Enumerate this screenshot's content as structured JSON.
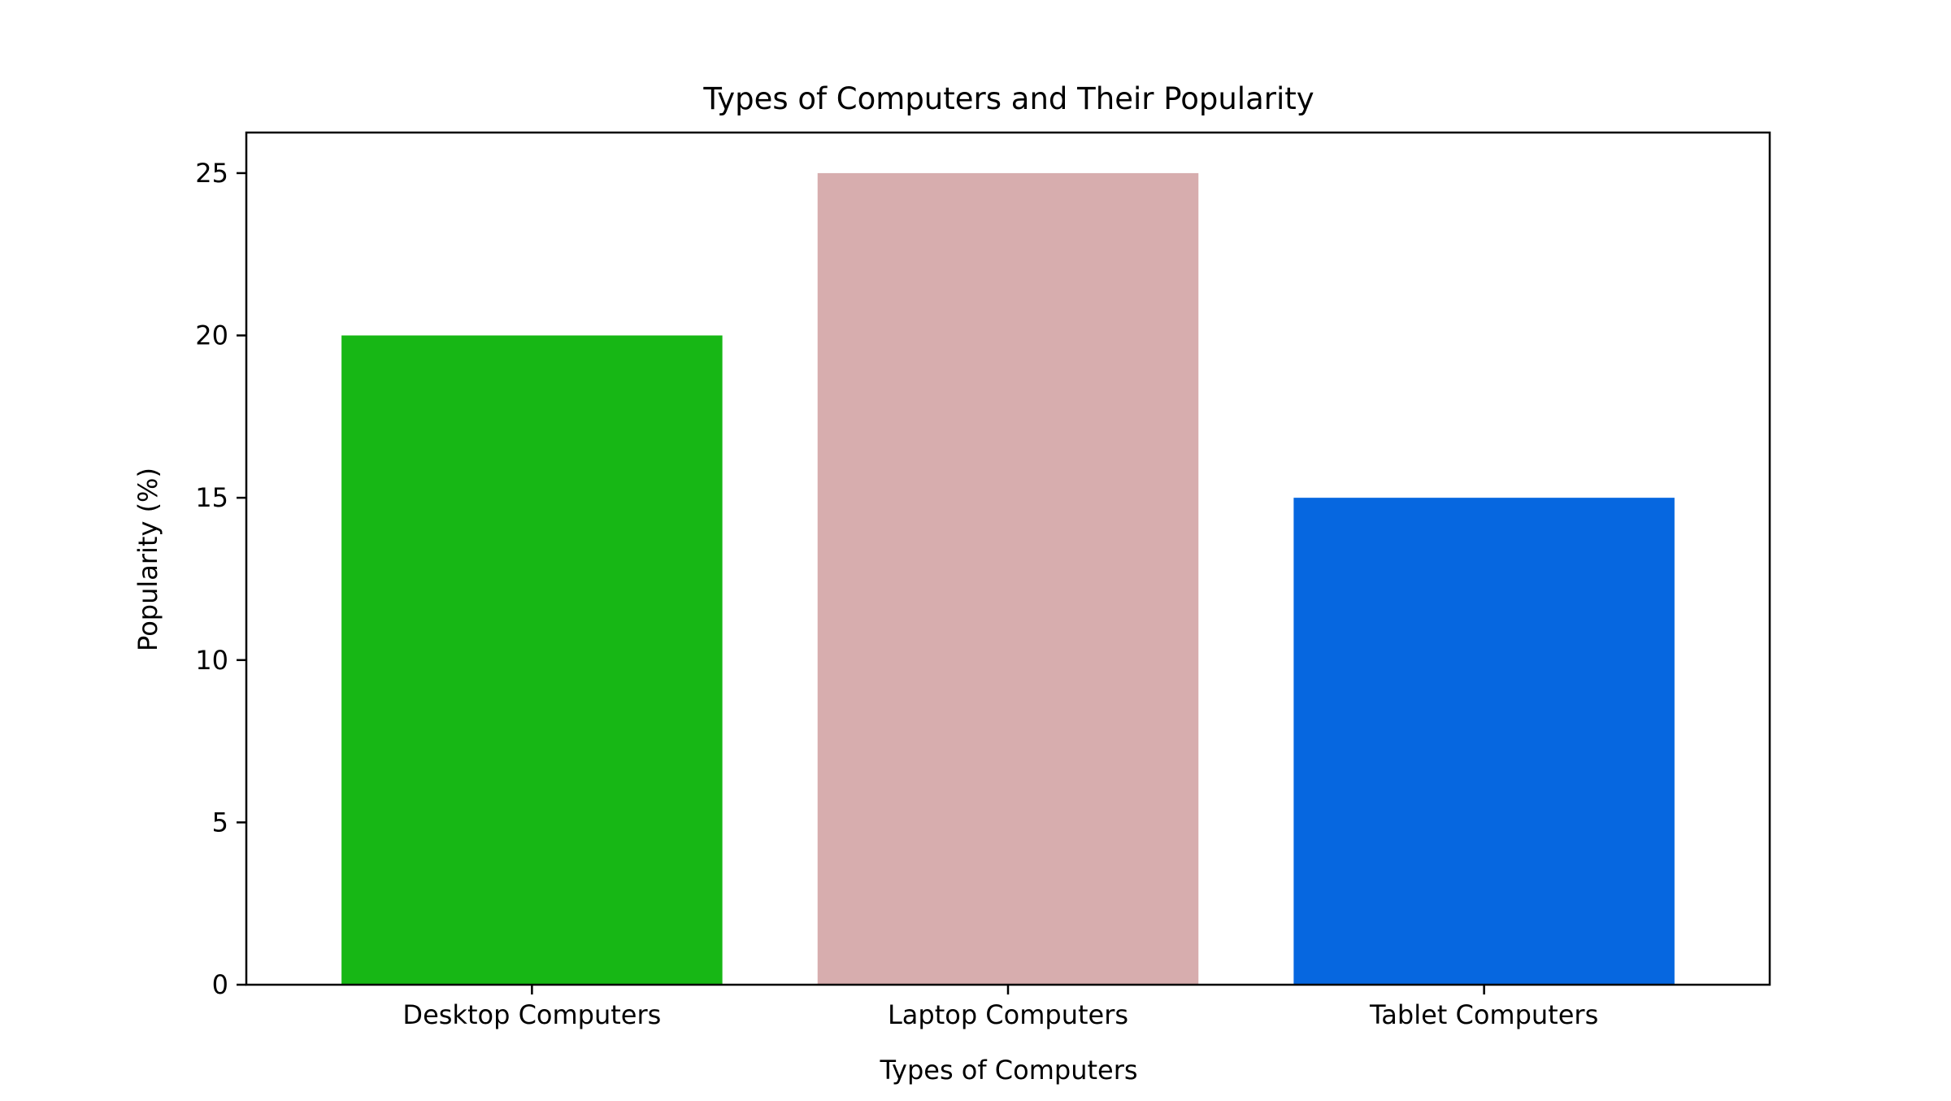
{
  "chart_data": {
    "type": "bar",
    "title": "Types of Computers and Their Popularity",
    "xlabel": "Types of Computers",
    "ylabel": "Popularity (%)",
    "categories": [
      "Desktop Computers",
      "Laptop Computers",
      "Tablet Computers"
    ],
    "values": [
      20,
      25,
      15
    ],
    "colors": [
      "#17b715",
      "#d7adae",
      "#0667e0"
    ],
    "ylim": [
      0,
      26.25
    ],
    "yticks": [
      0,
      5,
      10,
      15,
      20,
      25
    ],
    "grid": false,
    "legend": "none"
  }
}
